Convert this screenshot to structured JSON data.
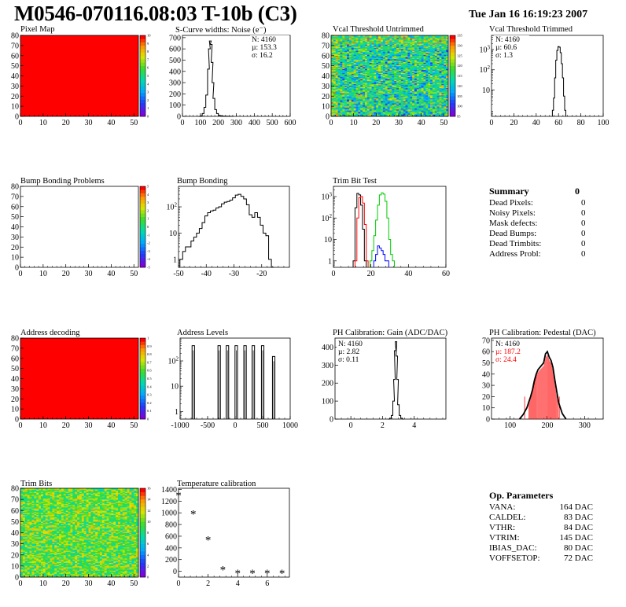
{
  "header": {
    "title": "M0546-070116.08:03 T-10b (C3)",
    "date": "Tue Jan 16 16:19:23 2007"
  },
  "colors": {
    "hot": "#ff0000",
    "black": "#000000",
    "red": "#ff0000",
    "green": "#00cc00",
    "blue": "#0000ff"
  },
  "chart_data": [
    {
      "id": "pixel-map",
      "type": "heatmap",
      "title": "Pixel Map",
      "xticks": [
        "0",
        "10",
        "20",
        "30",
        "40",
        "50"
      ],
      "yticks": [
        "0",
        "10",
        "20",
        "30",
        "40",
        "50",
        "60",
        "70",
        "80"
      ],
      "xlim": [
        0,
        52
      ],
      "ylim": [
        0,
        80
      ],
      "zticks": [
        "0",
        "1",
        "2",
        "3",
        "4",
        "5",
        "6",
        "7",
        "8",
        "9",
        "10"
      ],
      "fill": "uniform-max"
    },
    {
      "id": "scurve-widths",
      "type": "line",
      "title": "S-Curve widths: Noise (e⁻)",
      "xticks": [
        "0",
        "100",
        "200",
        "300",
        "400",
        "500",
        "600"
      ],
      "yticks": [
        "0",
        "100",
        "200",
        "300",
        "400",
        "500",
        "600",
        "700"
      ],
      "xlim": [
        0,
        600
      ],
      "ylim": [
        0,
        720
      ],
      "stats": [
        "N: 4160",
        "µ: 153.3",
        "σ: 16.2"
      ],
      "x": [
        95,
        105,
        115,
        125,
        135,
        145,
        150,
        155,
        160,
        165,
        170,
        175,
        185,
        195,
        205,
        215,
        225,
        240,
        260,
        280
      ],
      "y": [
        0,
        5,
        25,
        80,
        190,
        420,
        600,
        670,
        640,
        480,
        300,
        160,
        60,
        25,
        10,
        5,
        3,
        2,
        1,
        0
      ]
    },
    {
      "id": "vcal-untrimmed",
      "type": "heatmap",
      "title": "Vcal Threshold Untrimmed",
      "xticks": [
        "0",
        "10",
        "20",
        "30",
        "40",
        "50"
      ],
      "yticks": [
        "0",
        "10",
        "20",
        "30",
        "40",
        "50",
        "60",
        "70",
        "80"
      ],
      "xlim": [
        0,
        52
      ],
      "ylim": [
        0,
        80
      ],
      "zticks": [
        "95",
        "100",
        "105",
        "110",
        "115",
        "120",
        "125",
        "130",
        "135"
      ],
      "fill": "noise-centered"
    },
    {
      "id": "vcal-trimmed",
      "type": "line",
      "title": "Vcal Threshold Trimmed",
      "log_y": true,
      "xticks": [
        "0",
        "20",
        "40",
        "60",
        "80",
        "100"
      ],
      "yticks": [
        "10",
        "10²",
        "10³"
      ],
      "xlim": [
        0,
        100
      ],
      "ylim": [
        0.5,
        5000
      ],
      "stats": [
        "N: 4160",
        "µ: 60.6",
        "σ:  1.3"
      ],
      "x": [
        55,
        56,
        57,
        58,
        59,
        60,
        61,
        62,
        63,
        64,
        65,
        66
      ],
      "y": [
        1,
        4,
        40,
        300,
        900,
        1400,
        1300,
        700,
        200,
        40,
        5,
        1
      ]
    },
    {
      "id": "bump-bonding-problems",
      "type": "heatmap",
      "title": "Bump Bonding Problems",
      "xticks": [
        "0",
        "10",
        "20",
        "30",
        "40",
        "50"
      ],
      "yticks": [
        "0",
        "10",
        "20",
        "30",
        "40",
        "50",
        "60",
        "70",
        "80"
      ],
      "xlim": [
        0,
        52
      ],
      "ylim": [
        0,
        80
      ],
      "zticks": [
        "-5",
        "-4",
        "-3",
        "-2",
        "-1",
        "0",
        "1",
        "2",
        "3",
        "4",
        "5"
      ],
      "fill": "empty"
    },
    {
      "id": "bump-bonding",
      "type": "line",
      "title": "Bump Bonding",
      "log_y": true,
      "xticks": [
        "-50",
        "-40",
        "-30",
        "-20"
      ],
      "yticks": [
        "1",
        "10",
        "10²"
      ],
      "xlim": [
        -50,
        -10
      ],
      "ylim": [
        0.5,
        600
      ],
      "x": [
        -49,
        -48,
        -47,
        -46,
        -45,
        -44,
        -43,
        -42,
        -41,
        -40,
        -39,
        -38,
        -37,
        -36,
        -35,
        -34,
        -33,
        -32,
        -31,
        -30,
        -29,
        -28,
        -27,
        -26,
        -25,
        -24,
        -23,
        -22,
        -21,
        -20,
        -19,
        -18,
        -17,
        -16
      ],
      "y": [
        1,
        2,
        3,
        3,
        5,
        7,
        10,
        15,
        25,
        45,
        60,
        70,
        75,
        90,
        100,
        130,
        150,
        160,
        180,
        220,
        280,
        300,
        250,
        200,
        120,
        50,
        40,
        60,
        40,
        20,
        10,
        8,
        1,
        0.5
      ]
    },
    {
      "id": "trim-bit-test",
      "type": "line",
      "title": "Trim Bit Test",
      "log_y": true,
      "xticks": [
        "0",
        "20",
        "40",
        "60"
      ],
      "yticks": [
        "1",
        "10",
        "10²",
        "10³"
      ],
      "xlim": [
        0,
        60
      ],
      "ylim": [
        0.5,
        3000
      ],
      "series": [
        {
          "color": "#000000",
          "x": [
            11,
            12,
            13,
            14,
            15,
            16,
            17
          ],
          "y": [
            1,
            300,
            1400,
            1200,
            400,
            30,
            1
          ]
        },
        {
          "color": "#ff0000",
          "x": [
            12,
            13,
            14,
            15,
            16,
            17,
            18
          ],
          "y": [
            1,
            100,
            900,
            1000,
            500,
            50,
            1
          ]
        },
        {
          "color": "#0000ff",
          "x": [
            22,
            23,
            24,
            25,
            26,
            27,
            28,
            29
          ],
          "y": [
            1,
            2,
            5,
            4,
            3,
            2,
            1,
            1
          ]
        },
        {
          "color": "#00cc00",
          "x": [
            20,
            21,
            22,
            23,
            24,
            25,
            26,
            27,
            28,
            29,
            30,
            31,
            32
          ],
          "y": [
            1,
            3,
            15,
            80,
            400,
            1200,
            1500,
            1300,
            600,
            100,
            10,
            2,
            1
          ]
        }
      ]
    },
    {
      "id": "address-decoding",
      "type": "heatmap",
      "title": "Address decoding",
      "xticks": [
        "0",
        "10",
        "20",
        "30",
        "40",
        "50"
      ],
      "yticks": [
        "0",
        "10",
        "20",
        "30",
        "40",
        "50",
        "60",
        "70",
        "80"
      ],
      "xlim": [
        0,
        52
      ],
      "ylim": [
        0,
        80
      ],
      "zticks": [
        "0",
        "0.1",
        "0.2",
        "0.3",
        "0.4",
        "0.5",
        "0.6",
        "0.7",
        "0.8",
        "0.9",
        "1"
      ],
      "fill": "uniform-max"
    },
    {
      "id": "address-levels",
      "type": "line",
      "title": "Address Levels",
      "log_y": true,
      "xticks": [
        "-1000",
        "-500",
        "0",
        "500",
        "1000"
      ],
      "yticks": [
        "1",
        "10",
        "10²"
      ],
      "xlim": [
        -1000,
        1000
      ],
      "ylim": [
        0.5,
        800
      ],
      "peaks": [
        -760,
        -290,
        -140,
        20,
        180,
        330,
        500,
        700
      ],
      "peak_heights": [
        400,
        400,
        400,
        400,
        400,
        400,
        400,
        150
      ]
    },
    {
      "id": "ph-gain",
      "type": "line",
      "title": "PH Calibration: Gain (ADC/DAC)",
      "xticks": [
        "0",
        "2",
        "4"
      ],
      "yticks": [
        "0",
        "100",
        "200",
        "300",
        "400"
      ],
      "xlim": [
        -1,
        6
      ],
      "ylim": [
        0,
        450
      ],
      "stats": [
        "N: 4160",
        "µ: 2.82",
        "σ: 0.11"
      ],
      "x": [
        2.4,
        2.5,
        2.6,
        2.7,
        2.75,
        2.8,
        2.85,
        2.9,
        2.95,
        3.0,
        3.1,
        3.2,
        3.3
      ],
      "y": [
        0,
        5,
        20,
        100,
        220,
        380,
        430,
        350,
        220,
        80,
        20,
        5,
        0
      ]
    },
    {
      "id": "ph-pedestal",
      "type": "line",
      "title": "PH Calibration: Pedestal (DAC)",
      "xticks": [
        "100",
        "200",
        "300"
      ],
      "yticks": [
        "0",
        "10",
        "20",
        "30",
        "40",
        "50",
        "60",
        "70"
      ],
      "xlim": [
        50,
        350
      ],
      "ylim": [
        0,
        72
      ],
      "stats": [
        "N: 4160",
        "µ: 187.2",
        "σ: 24.4"
      ],
      "stats_colors": [
        "#000000",
        "#ff0000",
        "#ff0000"
      ],
      "x": [
        125,
        135,
        145,
        155,
        160,
        165,
        170,
        175,
        180,
        185,
        190,
        195,
        200,
        205,
        210,
        215,
        220,
        225,
        230,
        240,
        250
      ],
      "y": [
        0,
        4,
        10,
        20,
        26,
        34,
        40,
        44,
        46,
        48,
        50,
        58,
        60,
        55,
        52,
        46,
        35,
        25,
        15,
        5,
        0
      ]
    },
    {
      "id": "trim-bits",
      "type": "heatmap",
      "title": "Trim Bits",
      "xticks": [
        "0",
        "10",
        "20",
        "30",
        "40",
        "50"
      ],
      "yticks": [
        "0",
        "10",
        "20",
        "30",
        "40",
        "50",
        "60",
        "70",
        "80"
      ],
      "xlim": [
        0,
        52
      ],
      "ylim": [
        0,
        80
      ],
      "zticks": [
        "0",
        "2",
        "4",
        "6",
        "8",
        "10",
        "12",
        "14",
        "16"
      ],
      "fill": "noise-warm"
    },
    {
      "id": "temperature-calibration",
      "type": "scatter",
      "title": "Temperature calibration",
      "xticks": [
        "0",
        "2",
        "4",
        "6"
      ],
      "yticks": [
        "0",
        "200",
        "400",
        "600",
        "800",
        "1000",
        "1200",
        "1400"
      ],
      "xlim": [
        0,
        7.5
      ],
      "ylim": [
        -100,
        1420
      ],
      "x": [
        0,
        1,
        2,
        3,
        4,
        5,
        6,
        7
      ],
      "y": [
        1300,
        980,
        540,
        30,
        -30,
        -30,
        -30,
        -30
      ]
    }
  ],
  "summary": {
    "title": "Summary",
    "total": "0",
    "rows": [
      {
        "label": "Dead Pixels:",
        "value": "0"
      },
      {
        "label": "Noisy Pixels:",
        "value": "0"
      },
      {
        "label": "Mask defects:",
        "value": "0"
      },
      {
        "label": "Dead Bumps:",
        "value": "0"
      },
      {
        "label": "Dead Trimbits:",
        "value": "0"
      },
      {
        "label": "Address Probl:",
        "value": "0"
      }
    ]
  },
  "op_params": {
    "title": "Op. Parameters",
    "rows": [
      {
        "label": "VANA:",
        "value": "164 DAC"
      },
      {
        "label": "CALDEL:",
        "value": "83 DAC"
      },
      {
        "label": "VTHR:",
        "value": "84 DAC"
      },
      {
        "label": "VTRIM:",
        "value": "145 DAC"
      },
      {
        "label": "IBIAS_DAC:",
        "value": "80 DAC"
      },
      {
        "label": "VOFFSETOP:",
        "value": "72 DAC"
      }
    ]
  }
}
